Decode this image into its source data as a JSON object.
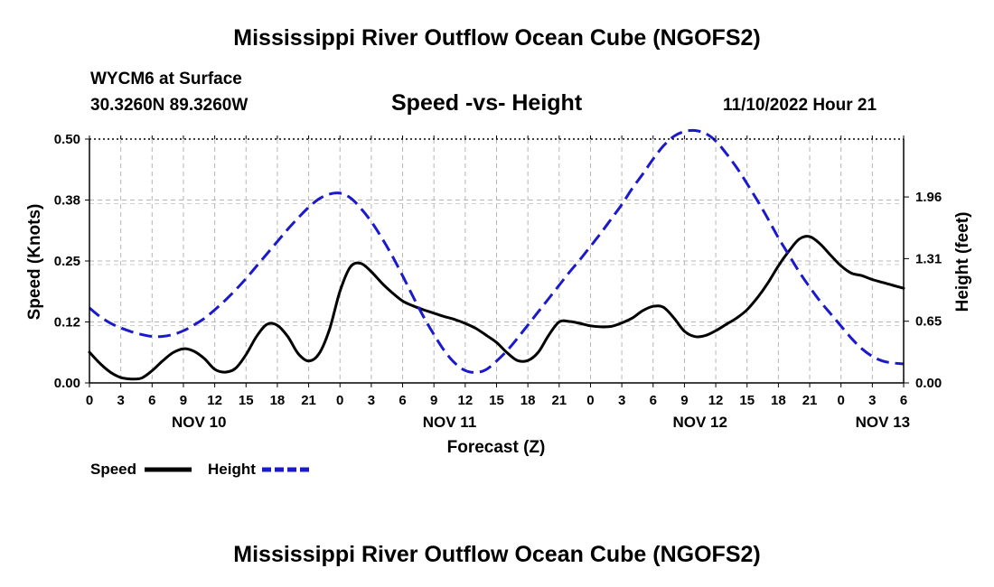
{
  "page": {
    "title_top": "Mississippi River Outflow Ocean Cube (NGOFS2)",
    "title_bottom": "Mississippi River Outflow Ocean Cube (NGOFS2)",
    "station": "WYCM6 at Surface",
    "coords": "30.3260N  89.3260W",
    "subtitle": "Speed -vs- Height",
    "datetime": "11/10/2022 Hour 21"
  },
  "chart_data": {
    "type": "line",
    "title": "Speed -vs- Height",
    "xlabel": "Forecast (Z)",
    "ylabel": "Speed (Knots)",
    "y2label": "Height (feet)",
    "x_unit": "hours from NOV 10 00Z",
    "xlim": [
      0,
      78
    ],
    "ylim": [
      0,
      0.5
    ],
    "y2lim": [
      0,
      2.57
    ],
    "grid": true,
    "x_ticks": [
      {
        "x": 0,
        "label": "0"
      },
      {
        "x": 3,
        "label": "3"
      },
      {
        "x": 6,
        "label": "6"
      },
      {
        "x": 9,
        "label": "9"
      },
      {
        "x": 12,
        "label": "12"
      },
      {
        "x": 15,
        "label": "15"
      },
      {
        "x": 18,
        "label": "18"
      },
      {
        "x": 21,
        "label": "21"
      },
      {
        "x": 24,
        "label": "0"
      },
      {
        "x": 27,
        "label": "3"
      },
      {
        "x": 30,
        "label": "6"
      },
      {
        "x": 33,
        "label": "9"
      },
      {
        "x": 36,
        "label": "12"
      },
      {
        "x": 39,
        "label": "15"
      },
      {
        "x": 42,
        "label": "18"
      },
      {
        "x": 45,
        "label": "21"
      },
      {
        "x": 48,
        "label": "0"
      },
      {
        "x": 51,
        "label": "3"
      },
      {
        "x": 54,
        "label": "6"
      },
      {
        "x": 57,
        "label": "9"
      },
      {
        "x": 60,
        "label": "12"
      },
      {
        "x": 63,
        "label": "15"
      },
      {
        "x": 66,
        "label": "18"
      },
      {
        "x": 69,
        "label": "21"
      },
      {
        "x": 72,
        "label": "0"
      },
      {
        "x": 75,
        "label": "3"
      },
      {
        "x": 78,
        "label": "6"
      }
    ],
    "day_labels": [
      {
        "x": 10.5,
        "label": "NOV 10"
      },
      {
        "x": 34.5,
        "label": "NOV 11"
      },
      {
        "x": 58.5,
        "label": "NOV 12"
      },
      {
        "x": 76,
        "label": "NOV 13"
      }
    ],
    "y_ticks": [
      {
        "v": 0.0,
        "label": "0.00"
      },
      {
        "v": 0.125,
        "label": "0.12"
      },
      {
        "v": 0.25,
        "label": "0.25"
      },
      {
        "v": 0.375,
        "label": "0.38"
      },
      {
        "v": 0.5,
        "label": "0.50"
      }
    ],
    "y2_ticks": [
      {
        "v": 0.0,
        "label": "0.00"
      },
      {
        "v": 0.65,
        "label": "0.65"
      },
      {
        "v": 1.31,
        "label": "1.31"
      },
      {
        "v": 1.96,
        "label": "1.96"
      }
    ],
    "legend": [
      {
        "name": "Speed",
        "color": "#000000",
        "style": "solid"
      },
      {
        "name": "Height",
        "color": "#1a1acc",
        "style": "dashed"
      }
    ],
    "series": [
      {
        "name": "Speed",
        "axis": "left",
        "color": "#000000",
        "style": "solid",
        "x": [
          0,
          1,
          2,
          3,
          4,
          5,
          6,
          7,
          8,
          9,
          10,
          11,
          12,
          13,
          14,
          15,
          16,
          17,
          18,
          19,
          20,
          21,
          22,
          23,
          24,
          25,
          26,
          27,
          28,
          29,
          30,
          31,
          32,
          33,
          34,
          35,
          36,
          37,
          38,
          39,
          40,
          41,
          42,
          43,
          44,
          45,
          46,
          47,
          48,
          49,
          50,
          51,
          52,
          53,
          54,
          55,
          56,
          57,
          58,
          59,
          60,
          61,
          62,
          63,
          64,
          65,
          66,
          67,
          68,
          69,
          70,
          71,
          72,
          73,
          74,
          75,
          76,
          77,
          78
        ],
        "values": [
          0.063,
          0.04,
          0.022,
          0.011,
          0.008,
          0.01,
          0.025,
          0.045,
          0.062,
          0.07,
          0.065,
          0.05,
          0.028,
          0.022,
          0.03,
          0.058,
          0.095,
          0.12,
          0.118,
          0.095,
          0.06,
          0.045,
          0.06,
          0.11,
          0.188,
          0.238,
          0.245,
          0.228,
          0.205,
          0.185,
          0.168,
          0.158,
          0.15,
          0.143,
          0.136,
          0.13,
          0.122,
          0.112,
          0.098,
          0.083,
          0.062,
          0.046,
          0.046,
          0.063,
          0.098,
          0.125,
          0.126,
          0.122,
          0.117,
          0.115,
          0.116,
          0.123,
          0.133,
          0.148,
          0.157,
          0.155,
          0.133,
          0.106,
          0.095,
          0.097,
          0.107,
          0.12,
          0.133,
          0.15,
          0.175,
          0.205,
          0.24,
          0.27,
          0.295,
          0.3,
          0.285,
          0.262,
          0.24,
          0.225,
          0.22,
          0.212,
          0.206,
          0.2,
          0.194
        ]
      },
      {
        "name": "Height",
        "axis": "right",
        "color": "#1a1acc",
        "style": "dashed",
        "x": [
          0,
          1,
          2,
          3,
          4,
          5,
          6,
          7,
          8,
          9,
          10,
          11,
          12,
          13,
          14,
          15,
          16,
          17,
          18,
          19,
          20,
          21,
          22,
          23,
          24,
          25,
          26,
          27,
          28,
          29,
          30,
          31,
          32,
          33,
          34,
          35,
          36,
          37,
          38,
          39,
          40,
          41,
          42,
          43,
          44,
          45,
          46,
          47,
          48,
          49,
          50,
          51,
          52,
          53,
          54,
          55,
          56,
          57,
          58,
          59,
          60,
          61,
          62,
          63,
          64,
          65,
          66,
          67,
          68,
          69,
          70,
          71,
          72,
          73,
          74,
          75,
          76,
          77,
          78
        ],
        "values": [
          0.79,
          0.7,
          0.63,
          0.58,
          0.54,
          0.51,
          0.49,
          0.49,
          0.51,
          0.55,
          0.61,
          0.68,
          0.77,
          0.87,
          0.98,
          1.1,
          1.23,
          1.36,
          1.49,
          1.62,
          1.74,
          1.85,
          1.94,
          1.99,
          2.0,
          1.95,
          1.84,
          1.7,
          1.53,
          1.34,
          1.13,
          0.91,
          0.7,
          0.51,
          0.34,
          0.21,
          0.13,
          0.11,
          0.14,
          0.23,
          0.34,
          0.47,
          0.61,
          0.75,
          0.89,
          1.03,
          1.17,
          1.3,
          1.44,
          1.58,
          1.73,
          1.88,
          2.05,
          2.2,
          2.36,
          2.5,
          2.6,
          2.65,
          2.66,
          2.63,
          2.55,
          2.42,
          2.27,
          2.1,
          1.92,
          1.73,
          1.53,
          1.35,
          1.17,
          1.01,
          0.86,
          0.73,
          0.6,
          0.47,
          0.36,
          0.28,
          0.23,
          0.21,
          0.2
        ]
      }
    ]
  }
}
